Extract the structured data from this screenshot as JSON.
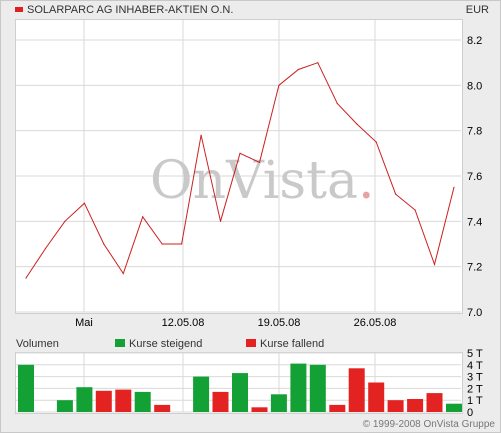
{
  "header": {
    "title": "SOLARPARC AG INHABER-AKTIEN O.N.",
    "currency": "EUR"
  },
  "watermark": {
    "brand": "OnVista",
    "dot": "."
  },
  "colors": {
    "price_line": "#cc1f1f",
    "rising": "#13a034",
    "falling": "#e32222",
    "grid": "#d9d9d9"
  },
  "chart_data": [
    {
      "type": "line",
      "title": "SOLARPARC AG INHABER-AKTIEN O.N.",
      "ylabel": "EUR",
      "ylim": [
        7.0,
        8.2
      ],
      "yticks": [
        "8.2",
        "8.0",
        "7.8",
        "7.6",
        "7.4",
        "7.2",
        "7.0"
      ],
      "xticks": [
        "Mai",
        "12.05.08",
        "19.05.08",
        "26.05.08"
      ],
      "grid": true,
      "series": [
        {
          "name": "SOLARPARC AG INHABER-AKTIEN O.N.",
          "values": [
            7.15,
            7.28,
            7.4,
            7.48,
            7.3,
            7.17,
            7.42,
            7.3,
            7.3,
            7.78,
            7.4,
            7.7,
            7.66,
            8.0,
            8.07,
            8.1,
            7.92,
            7.83,
            7.75,
            7.52,
            7.45,
            7.21,
            7.55
          ]
        }
      ]
    },
    {
      "type": "bar",
      "title": "Volumen",
      "ylim": [
        0,
        5
      ],
      "yticks": [
        "5 T",
        "4 T",
        "3 T",
        "2 T",
        "1 T",
        "0"
      ],
      "legend": [
        {
          "label": "Kurse steigend",
          "color": "#13a034"
        },
        {
          "label": "Kurse fallend",
          "color": "#e32222"
        }
      ],
      "grid": true,
      "series": [
        {
          "name": "Volumen",
          "values": [
            4.0,
            0,
            1.0,
            2.1,
            1.8,
            1.9,
            1.7,
            0.6,
            0,
            3.0,
            1.7,
            3.3,
            0.4,
            1.5,
            4.1,
            4.0,
            0.6,
            3.7,
            2.5,
            1.0,
            1.1,
            1.6,
            0.7
          ],
          "direction": [
            "up",
            "none",
            "up",
            "up",
            "down",
            "down",
            "up",
            "down",
            "none",
            "up",
            "down",
            "up",
            "down",
            "up",
            "up",
            "up",
            "down",
            "down",
            "down",
            "down",
            "down",
            "down",
            "up"
          ]
        }
      ]
    }
  ],
  "footer": {
    "copyright": "© 1999-2008 OnVista Gruppe"
  }
}
